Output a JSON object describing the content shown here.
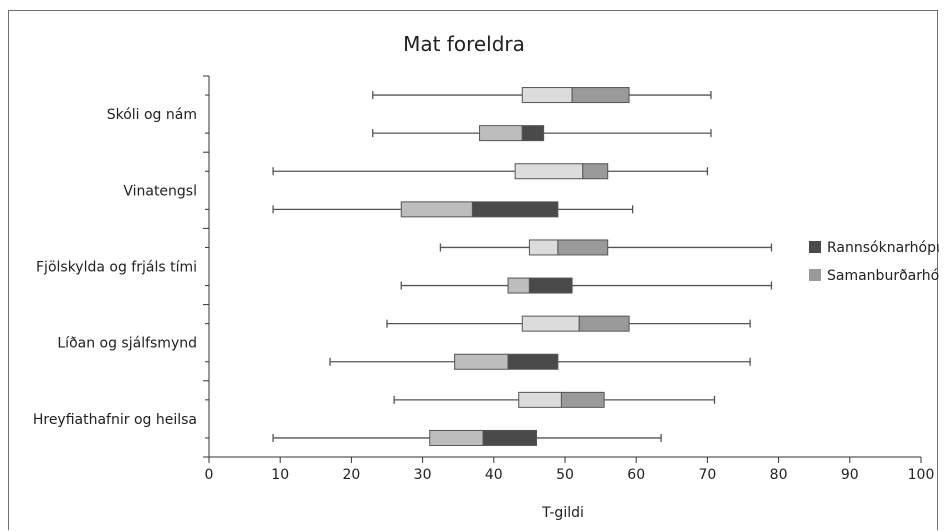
{
  "chart_data": {
    "type": "boxplot",
    "orientation": "horizontal",
    "title": "Mat foreldra",
    "xlabel": "T-gildi",
    "ylabel": "",
    "xlim": [
      0,
      100
    ],
    "xticks": [
      0,
      10,
      20,
      30,
      40,
      50,
      60,
      70,
      80,
      90,
      100
    ],
    "grid": false,
    "legend_position": "right",
    "categories": [
      "Skóli og nám",
      "Vinatengsl",
      "Fjölskylda og frjáls tími",
      "Líðan og sjálfsmynd",
      "Hreyfiathafnir og heilsa"
    ],
    "series": [
      {
        "name": "Rannsóknarhópur",
        "color_q1_median": "#bdbdbd",
        "color_median_q3": "#4a4a4a",
        "boxes": [
          {
            "min": 23,
            "q1": 38,
            "median": 44,
            "q3": 47,
            "max": 70.5
          },
          {
            "min": 9,
            "q1": 27,
            "median": 37,
            "q3": 49,
            "max": 59.5
          },
          {
            "min": 27,
            "q1": 42,
            "median": 45,
            "q3": 51,
            "max": 79
          },
          {
            "min": 17,
            "q1": 34.5,
            "median": 42,
            "q3": 49,
            "max": 76
          },
          {
            "min": 9,
            "q1": 31,
            "median": 38.5,
            "q3": 46,
            "max": 63.5
          }
        ]
      },
      {
        "name": "Samanburðarhópur",
        "color_q1_median": "#dcdcdc",
        "color_median_q3": "#9a9a9a",
        "boxes": [
          {
            "min": 23,
            "q1": 44,
            "median": 51,
            "q3": 59,
            "max": 70.5
          },
          {
            "min": 9,
            "q1": 43,
            "median": 52.5,
            "q3": 56,
            "max": 70
          },
          {
            "min": 32.5,
            "q1": 45,
            "median": 49,
            "q3": 56,
            "max": 79
          },
          {
            "min": 25,
            "q1": 44,
            "median": 52,
            "q3": 59,
            "max": 76
          },
          {
            "min": 26,
            "q1": 43.5,
            "median": 49.5,
            "q3": 55.5,
            "max": 71
          }
        ]
      }
    ]
  }
}
